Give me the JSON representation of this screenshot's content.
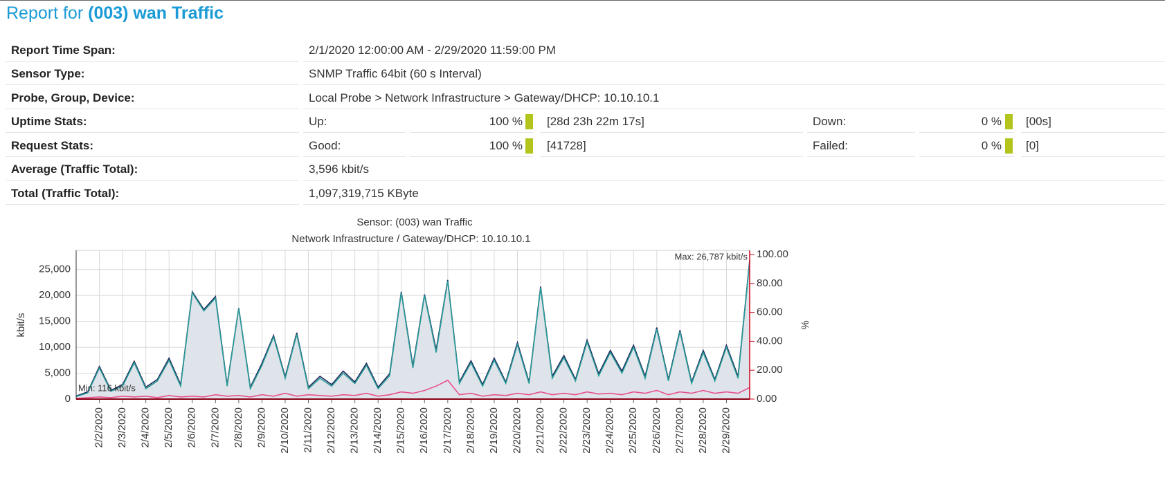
{
  "header": {
    "title_prefix": "Report for",
    "title_name": "(003) wan Traffic"
  },
  "table": {
    "rows": [
      [
        "Report Time Span:",
        "2/1/2020 12:00:00 AM - 2/29/2020 11:59:00 PM"
      ],
      [
        "Sensor Type:",
        "SNMP Traffic 64bit (60 s Interval)"
      ],
      [
        "Probe, Group, Device:",
        "Local Probe > Network Infrastructure > Gateway/DHCP: 10.10.10.1"
      ],
      [
        "Uptime Stats:",
        "Up:",
        "100 %",
        "[28d 23h 22m 17s]",
        "Down:",
        "0 %",
        "[00s]"
      ],
      [
        "Request Stats:",
        "Good:",
        "100 %",
        "[41728]",
        "Failed:",
        "0 %",
        "[0]"
      ],
      [
        "Average (Traffic Total):",
        "3,596 kbit/s"
      ],
      [
        "Total (Traffic Total):",
        "1,097,319,715 KByte"
      ]
    ]
  },
  "chart_data": {
    "type": "line",
    "title": "Sensor: (003) wan Traffic",
    "subtitle": "Network Infrastructure / Gateway/DHCP: 10.10.10.1",
    "y_label": "kbit/s",
    "y2_label": "%",
    "annotations": [
      "Max: 26,787 kbit/s",
      "Min: 116 kbit/s"
    ],
    "grid": true,
    "xlim": [
      1,
      30
    ],
    "xticks": [
      {
        "value": 2,
        "label": "2/2/2020"
      },
      {
        "value": 3,
        "label": "2/3/2020"
      },
      {
        "value": 4,
        "label": "2/4/2020"
      },
      {
        "value": 5,
        "label": "2/5/2020"
      },
      {
        "value": 6,
        "label": "2/6/2020"
      },
      {
        "value": 7,
        "label": "2/7/2020"
      },
      {
        "value": 8,
        "label": "2/8/2020"
      },
      {
        "value": 9,
        "label": "2/9/2020"
      },
      {
        "value": 10,
        "label": "2/10/2020"
      },
      {
        "value": 11,
        "label": "2/11/2020"
      },
      {
        "value": 12,
        "label": "2/12/2020"
      },
      {
        "value": 13,
        "label": "2/13/2020"
      },
      {
        "value": 14,
        "label": "2/14/2020"
      },
      {
        "value": 15,
        "label": "2/15/2020"
      },
      {
        "value": 16,
        "label": "2/16/2020"
      },
      {
        "value": 17,
        "label": "2/17/2020"
      },
      {
        "value": 18,
        "label": "2/18/2020"
      },
      {
        "value": 19,
        "label": "2/19/2020"
      },
      {
        "value": 20,
        "label": "2/20/2020"
      },
      {
        "value": 21,
        "label": "2/21/2020"
      },
      {
        "value": 22,
        "label": "2/22/2020"
      },
      {
        "value": 23,
        "label": "2/23/2020"
      },
      {
        "value": 24,
        "label": "2/24/2020"
      },
      {
        "value": 25,
        "label": "2/25/2020"
      },
      {
        "value": 26,
        "label": "2/26/2020"
      },
      {
        "value": 27,
        "label": "2/27/2020"
      },
      {
        "value": 28,
        "label": "2/28/2020"
      },
      {
        "value": 29,
        "label": "2/29/2020"
      }
    ],
    "ylim": [
      0,
      28700
    ],
    "yticks": [
      0,
      {
        "value": 5000,
        "label": "5,000"
      },
      {
        "value": 10000,
        "label": "10,000"
      },
      {
        "value": 15000,
        "label": "15,000"
      },
      {
        "value": 20000,
        "label": "20,000"
      },
      {
        "value": 25000,
        "label": "25,000"
      }
    ],
    "y2lim": [
      0,
      102.9
    ],
    "y2ticks": [
      {
        "value": 0,
        "label": "0.00"
      },
      {
        "value": 20,
        "label": "20.00"
      },
      {
        "value": 40,
        "label": "40.00"
      },
      {
        "value": 60,
        "label": "60.00"
      },
      {
        "value": 80,
        "label": "80.00"
      },
      {
        "value": 100,
        "label": "100.00"
      }
    ],
    "x": [
      1,
      1.5,
      2,
      2.5,
      3,
      3.5,
      4,
      4.5,
      5,
      5.5,
      6,
      6.5,
      7,
      7.5,
      8,
      8.5,
      9,
      9.5,
      10,
      10.5,
      11,
      11.5,
      12,
      12.5,
      13,
      13.5,
      14,
      14.5,
      15,
      15.5,
      16,
      16.5,
      17,
      17.5,
      18,
      18.5,
      19,
      19.5,
      20,
      20.5,
      21,
      21.5,
      22,
      22.5,
      23,
      23.5,
      24,
      24.5,
      25,
      25.5,
      26,
      26.5,
      27,
      27.5,
      28,
      28.5,
      29,
      29.5,
      30
    ],
    "series": [
      {
        "color": "#1f2a5c",
        "fill": "#dfe4ea",
        "values": [
          600,
          1400,
          6300,
          1700,
          2800,
          7300,
          2300,
          3800,
          7900,
          2800,
          20700,
          17300,
          19800,
          2800,
          17600,
          2300,
          6900,
          12300,
          4300,
          12800,
          2300,
          4400,
          2800,
          5400,
          3300,
          6900,
          2300,
          4900,
          20700,
          6400,
          20200,
          9500,
          23000,
          3300,
          7400,
          2800,
          7900,
          3300,
          10900,
          3300,
          21700,
          4400,
          8400,
          3800,
          11400,
          4900,
          9400,
          5400,
          10400,
          4400,
          13800,
          3800,
          13300,
          3300,
          9400,
          3800,
          10400,
          4400,
          26787
        ]
      },
      {
        "color": "#2a9d9a",
        "values": [
          500,
          1200,
          6000,
          1500,
          2500,
          7000,
          2000,
          3500,
          7500,
          2500,
          20500,
          17000,
          19500,
          2500,
          17500,
          2000,
          6500,
          12000,
          4000,
          12500,
          2000,
          4000,
          2500,
          5000,
          3000,
          6500,
          2000,
          4500,
          20500,
          6000,
          20000,
          9000,
          22800,
          3000,
          7000,
          2500,
          7500,
          3000,
          10500,
          3000,
          21500,
          4000,
          8000,
          3500,
          11000,
          4500,
          9000,
          5000,
          10000,
          4000,
          13500,
          3500,
          13000,
          3000,
          9000,
          3500,
          10000,
          4000,
          26500
        ]
      },
      {
        "color": "#e8508c",
        "axis": "y2",
        "values": [
          0.5,
          1,
          1.5,
          1,
          2,
          1.5,
          2,
          1,
          2.5,
          1.5,
          2,
          1.5,
          3,
          2,
          2.5,
          1.5,
          3,
          2,
          4,
          2,
          3,
          2.5,
          2,
          3,
          2.5,
          4,
          2,
          3,
          5,
          4,
          6,
          9,
          13,
          3,
          4,
          2,
          3,
          2.5,
          4,
          3,
          5,
          3,
          4,
          3,
          5,
          3.5,
          4,
          3,
          5,
          4,
          6,
          3,
          5,
          4,
          6,
          4,
          5,
          4,
          8
        ]
      }
    ]
  }
}
